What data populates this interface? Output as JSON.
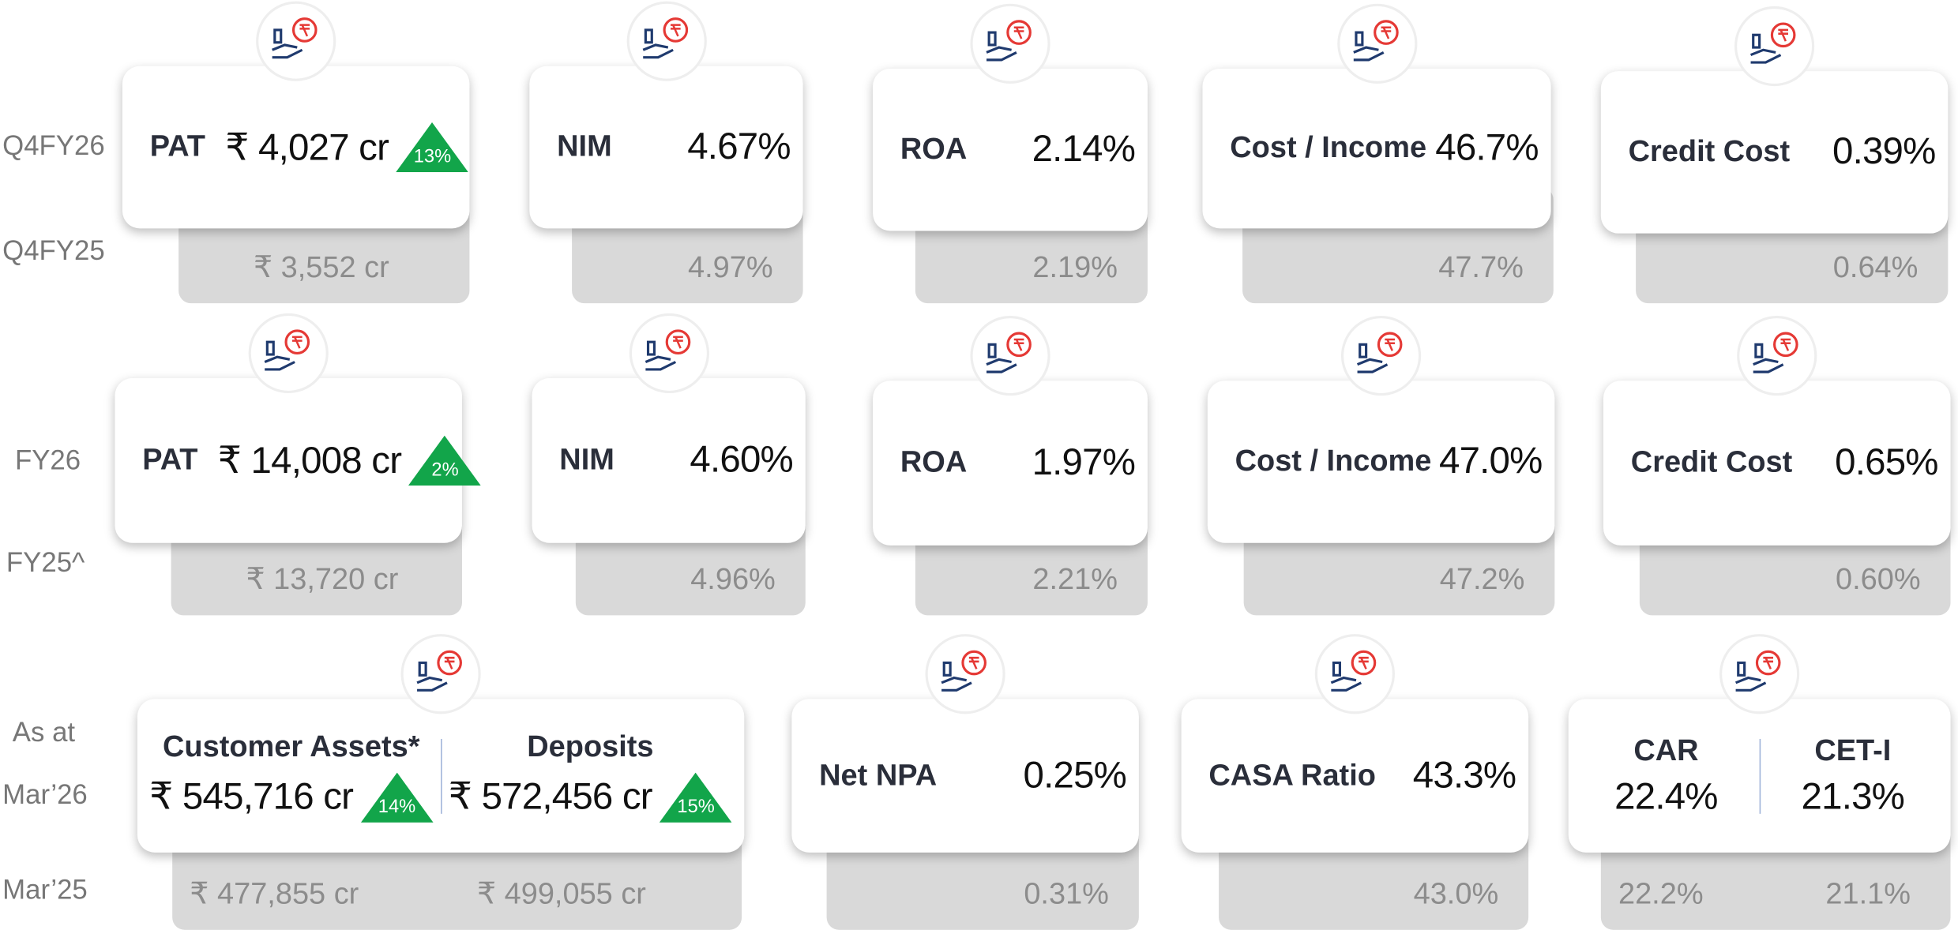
{
  "rows": [
    {
      "labels": [
        "Q4FY26",
        "Q4FY25"
      ],
      "cards": [
        {
          "items": [
            {
              "name": "PAT",
              "current": "₹ 4,027 cr",
              "growth": "13%",
              "previous": "₹ 3,552 cr"
            }
          ]
        },
        {
          "items": [
            {
              "name": "NIM",
              "current": "4.67%",
              "previous": "4.97%"
            }
          ]
        },
        {
          "items": [
            {
              "name": "ROA",
              "current": "2.14%",
              "previous": "2.19%"
            }
          ]
        },
        {
          "items": [
            {
              "name": "Cost / Income",
              "current": "46.7%",
              "previous": "47.7%"
            }
          ]
        },
        {
          "items": [
            {
              "name": "Credit Cost",
              "current": "0.39%",
              "previous": "0.64%"
            }
          ]
        }
      ]
    },
    {
      "labels": [
        "FY26",
        "FY25^"
      ],
      "cards": [
        {
          "items": [
            {
              "name": "PAT",
              "current": "₹ 14,008 cr",
              "growth": "2%",
              "previous": "₹ 13,720 cr"
            }
          ]
        },
        {
          "items": [
            {
              "name": "NIM",
              "current": "4.60%",
              "previous": "4.96%"
            }
          ]
        },
        {
          "items": [
            {
              "name": "ROA",
              "current": "1.97%",
              "previous": "2.21%"
            }
          ]
        },
        {
          "items": [
            {
              "name": "Cost / Income",
              "current": "47.0%",
              "previous": "47.2%"
            }
          ]
        },
        {
          "items": [
            {
              "name": "Credit Cost",
              "current": "0.65%",
              "previous": "0.60%"
            }
          ]
        }
      ]
    },
    {
      "labels": [
        "As at",
        "Mar’26",
        "Mar’25"
      ],
      "cards": [
        {
          "items": [
            {
              "name": "Customer Assets*",
              "current": "₹ 545,716 cr",
              "growth": "14%",
              "previous": "₹ 477,855 cr"
            },
            {
              "name": "Deposits",
              "current": "₹ 572,456 cr",
              "growth": "15%",
              "previous": "₹ 499,055 cr"
            }
          ]
        },
        {
          "items": [
            {
              "name": "Net NPA",
              "current": "0.25%",
              "previous": "0.31%"
            }
          ]
        },
        {
          "items": [
            {
              "name": "CASA Ratio",
              "current": "43.3%",
              "previous": "43.0%"
            }
          ]
        },
        {
          "items": [
            {
              "name": "CAR",
              "current": "22.4%",
              "previous": "22.2%"
            },
            {
              "name": "CET-I",
              "current": "21.3%",
              "previous": "21.1%"
            }
          ]
        }
      ]
    }
  ]
}
